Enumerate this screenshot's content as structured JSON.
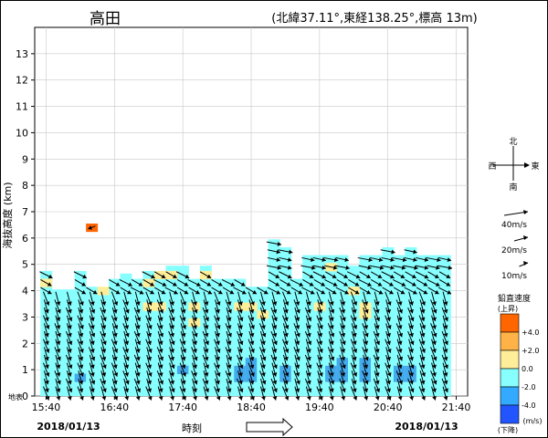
{
  "station": {
    "name": "高田",
    "info": "(北緯37.11°,東経138.25°,標高 13m)"
  },
  "chart_data": {
    "type": "wind-profiler",
    "ylabel": "海抜高度 (km)",
    "xlabel": "時刻",
    "ground_label": "地表",
    "date_left": "2018/01/13",
    "date_right": "2018/01/13",
    "ylim": [
      0,
      14
    ],
    "yticks": [
      0,
      1,
      2,
      3,
      4,
      5,
      6,
      7,
      8,
      9,
      10,
      11,
      12,
      13
    ],
    "xtick_labels": [
      "15:40",
      "16:40",
      "17:40",
      "18:40",
      "19:40",
      "20:40",
      "21:40"
    ],
    "time_start": "15:30",
    "time_end": "21:50",
    "step_minutes": 10,
    "height_step_km": 0.3,
    "columns": [
      {
        "t": "15:40",
        "top": 4.6,
        "blue": []
      },
      {
        "t": "15:50",
        "top": 3.9,
        "blue": []
      },
      {
        "t": "16:00",
        "top": 3.9,
        "blue": []
      },
      {
        "t": "16:10",
        "top": 4.6,
        "blue": [
          0.7
        ]
      },
      {
        "t": "16:20",
        "top": 4.0,
        "blue": []
      },
      {
        "t": "16:30",
        "top": 3.7,
        "blue": []
      },
      {
        "t": "16:40",
        "top": 4.3,
        "blue": []
      },
      {
        "t": "16:50",
        "top": 4.5,
        "blue": []
      },
      {
        "t": "17:00",
        "top": 4.3,
        "blue": []
      },
      {
        "t": "17:10",
        "top": 4.6,
        "blue": []
      },
      {
        "t": "17:20",
        "top": 4.6,
        "blue": []
      },
      {
        "t": "17:30",
        "top": 4.8,
        "blue": []
      },
      {
        "t": "17:40",
        "top": 4.8,
        "blue": [
          1.0
        ]
      },
      {
        "t": "17:50",
        "top": 4.3,
        "blue": []
      },
      {
        "t": "18:00",
        "top": 4.8,
        "blue": []
      },
      {
        "t": "18:10",
        "top": 4.3,
        "blue": []
      },
      {
        "t": "18:20",
        "top": 4.3,
        "blue": []
      },
      {
        "t": "18:30",
        "top": 4.3,
        "blue": [
          0.7,
          1.0
        ]
      },
      {
        "t": "18:40",
        "top": 4.0,
        "blue": [
          0.7,
          1.0,
          1.3
        ]
      },
      {
        "t": "18:50",
        "top": 4.0,
        "blue": []
      },
      {
        "t": "19:00",
        "top": 5.8,
        "blue": []
      },
      {
        "t": "19:10",
        "top": 5.5,
        "blue": [
          0.7,
          1.0
        ]
      },
      {
        "t": "19:20",
        "top": 4.3,
        "blue": []
      },
      {
        "t": "19:30",
        "top": 5.2,
        "blue": []
      },
      {
        "t": "19:40",
        "top": 5.2,
        "blue": []
      },
      {
        "t": "19:50",
        "top": 5.2,
        "blue": [
          0.7,
          1.0
        ]
      },
      {
        "t": "20:00",
        "top": 5.2,
        "blue": [
          0.7,
          1.0,
          1.3
        ]
      },
      {
        "t": "20:10",
        "top": 4.8,
        "blue": []
      },
      {
        "t": "20:20",
        "top": 5.2,
        "blue": [
          0.7,
          1.0,
          1.3
        ]
      },
      {
        "t": "20:30",
        "top": 5.2,
        "blue": []
      },
      {
        "t": "20:40",
        "top": 5.5,
        "blue": []
      },
      {
        "t": "20:50",
        "top": 5.2,
        "blue": [
          0.7,
          1.0
        ]
      },
      {
        "t": "21:00",
        "top": 5.5,
        "blue": [
          0.7,
          1.0
        ]
      },
      {
        "t": "21:10",
        "top": 5.2,
        "blue": []
      },
      {
        "t": "21:20",
        "top": 5.2,
        "blue": []
      },
      {
        "t": "21:30",
        "top": 5.2,
        "blue": []
      }
    ],
    "isolated_cell": {
      "t": "16:20",
      "h": 6.4,
      "band": "+4.0"
    },
    "yellow_cells": [
      {
        "t": "15:40",
        "h": 4.3
      },
      {
        "t": "16:30",
        "h": 4.0
      },
      {
        "t": "17:10",
        "h": 4.3
      },
      {
        "t": "17:10",
        "h": 3.4
      },
      {
        "t": "17:20",
        "h": 4.6
      },
      {
        "t": "17:20",
        "h": 3.4
      },
      {
        "t": "17:30",
        "h": 4.6
      },
      {
        "t": "17:50",
        "h": 2.8
      },
      {
        "t": "17:50",
        "h": 3.4
      },
      {
        "t": "18:00",
        "h": 4.6
      },
      {
        "t": "18:30",
        "h": 3.4
      },
      {
        "t": "18:40",
        "h": 3.4
      },
      {
        "t": "18:50",
        "h": 3.1
      },
      {
        "t": "19:40",
        "h": 3.4
      },
      {
        "t": "19:50",
        "h": 4.9
      },
      {
        "t": "20:10",
        "h": 4.0
      },
      {
        "t": "20:20",
        "h": 3.4
      },
      {
        "t": "20:20",
        "h": 3.1
      }
    ],
    "legend": {
      "compass": {
        "n": "北",
        "s": "南",
        "e": "東",
        "w": "西"
      },
      "speed_samples": [
        {
          "label": "40m/s",
          "value": 40
        },
        {
          "label": "20m/s",
          "value": 20
        },
        {
          "label": "10m/s",
          "value": 10
        }
      ],
      "title": "鉛直速度",
      "up_label": "(上昇)",
      "down_label": "(下降)",
      "unit": "(m/s)",
      "bands": [
        {
          "label": "+4.0",
          "color": "#ff6600"
        },
        {
          "label": "+2.0",
          "color": "#ffb347"
        },
        {
          "label": "0.0",
          "color": "#ffee99"
        },
        {
          "label": "-2.0",
          "color": "#88ffff"
        },
        {
          "label": "-4.0",
          "color": "#33aaff"
        },
        {
          "label": "",
          "color": "#2255ff"
        }
      ]
    },
    "colors": {
      "cyan": "#88ffff",
      "yellow": "#ffee99",
      "orange": "#ff6600",
      "blue": "#44aaee"
    }
  }
}
